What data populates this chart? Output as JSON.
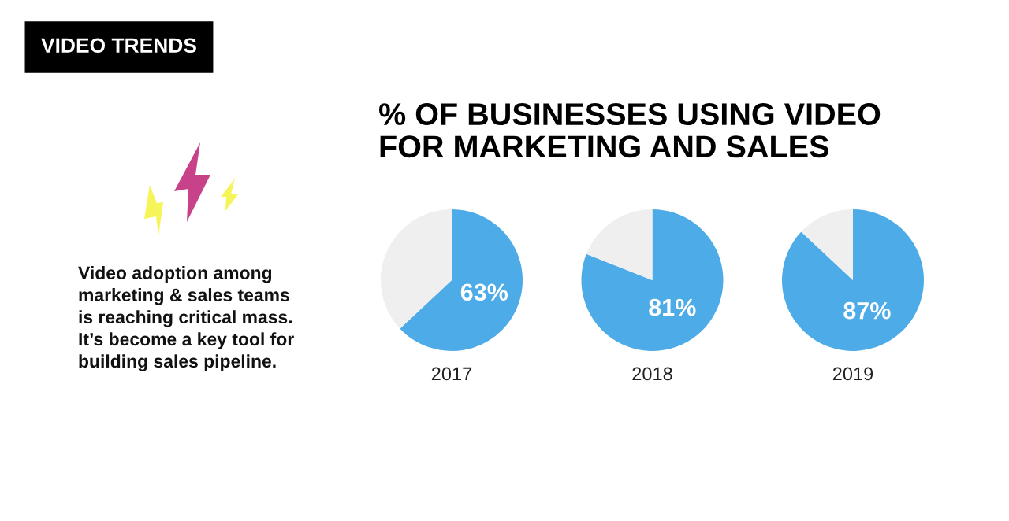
{
  "chart_data": [
    {
      "type": "other",
      "title": "VIDEO TRENDS",
      "annotations": [
        "Video adoption among\nmarketing & sales teams\nis reaching critical mass.\nIt’s become a key tool for\nbuilding sales pipeline."
      ]
    },
    {
      "type": "pie",
      "title": "% OF BUSINESSES USING VIDEO\nFOR MARKETING AND SALES",
      "xlabel": "2017",
      "categories": [
        null,
        null
      ],
      "values": [
        63,
        37
      ],
      "colors": [
        "#4dabe7",
        "#efefef"
      ],
      "value_labels": [
        "63%",
        null
      ]
    },
    {
      "type": "pie",
      "xlabel": "2018",
      "categories": [
        null,
        null
      ],
      "values": [
        81,
        19
      ],
      "colors": [
        "#4dabe7",
        "#efefef"
      ],
      "value_labels": [
        "81%",
        null
      ]
    },
    {
      "type": "pie",
      "xlabel": "2019",
      "categories": [
        null,
        null
      ],
      "values": [
        87,
        13
      ],
      "colors": [
        "#4dabe7",
        "#efefef"
      ],
      "value_labels": [
        "87%",
        null
      ]
    }
  ]
}
